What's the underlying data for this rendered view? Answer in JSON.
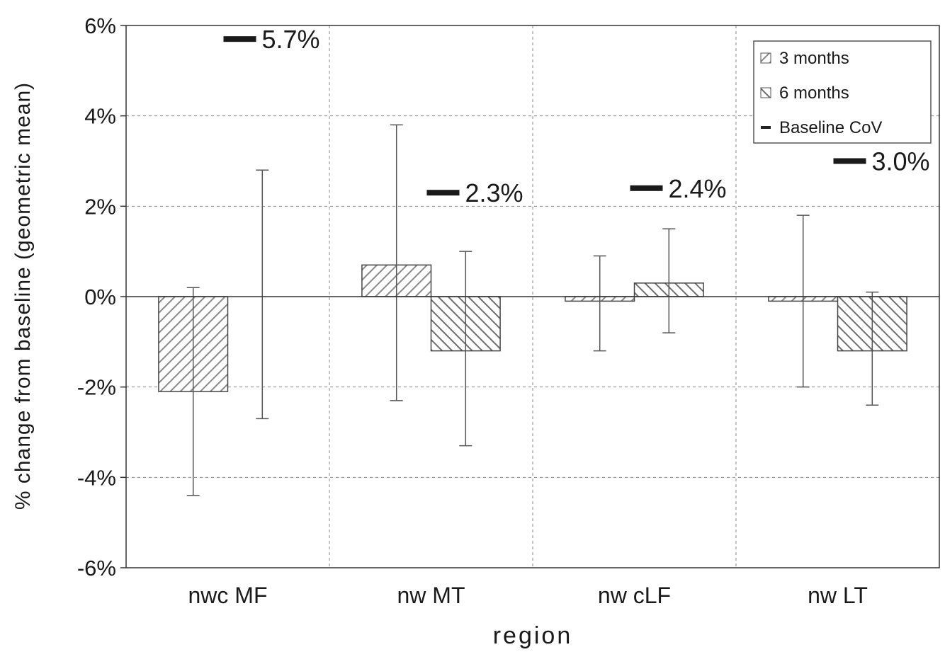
{
  "chart_data": {
    "type": "bar",
    "xlabel": "region",
    "ylabel": "% change from baseline (geometric mean)",
    "ylim": [
      -6,
      6
    ],
    "yticks": [
      6,
      4,
      2,
      0,
      -2,
      -4,
      -6
    ],
    "ytick_labels": [
      "6%",
      "4%",
      "2%",
      "0%",
      "-2%",
      "-4%",
      "-6%"
    ],
    "categories": [
      "nwc MF",
      "nw MT",
      "nw cLF",
      "nw LT"
    ],
    "series": [
      {
        "name": "3 months",
        "values": [
          -2.1,
          0.7,
          -0.1,
          -0.1
        ],
        "err_low": [
          -4.4,
          -2.3,
          -1.2,
          -2.0
        ],
        "err_high": [
          0.2,
          3.8,
          0.9,
          1.8
        ]
      },
      {
        "name": "6 months",
        "values": [
          0.0,
          -1.2,
          0.3,
          -1.2
        ],
        "err_low": [
          -2.7,
          -3.3,
          -0.8,
          -2.4
        ],
        "err_high": [
          2.8,
          1.0,
          1.5,
          0.1
        ]
      }
    ],
    "baseline_cov": {
      "name": "Baseline CoV",
      "values": [
        5.7,
        2.3,
        2.4,
        3.0
      ],
      "labels": [
        "5.7%",
        "2.3%",
        "2.4%",
        "3.0%"
      ]
    },
    "legend": {
      "position": "top-right",
      "entries": [
        "3 months",
        "6 months",
        "Baseline CoV"
      ]
    },
    "grid": true
  }
}
